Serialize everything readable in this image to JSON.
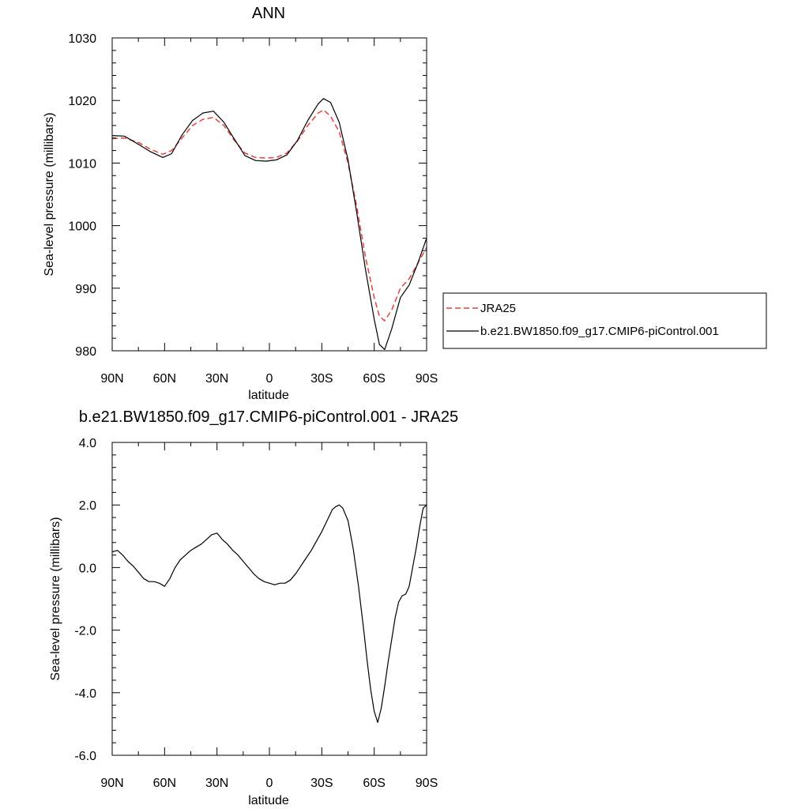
{
  "chart_data": [
    {
      "type": "line",
      "title": "ANN",
      "xlabel": "latitude",
      "ylabel": "Sea-level pressure (millibars)",
      "xlim": [
        90,
        -90
      ],
      "ylim": [
        980,
        1030
      ],
      "x_tick_values": [
        90,
        60,
        30,
        0,
        -30,
        -60,
        -90
      ],
      "x_tick_labels": [
        "90N",
        "60N",
        "30N",
        "0",
        "30S",
        "60S",
        "90S"
      ],
      "y_tick_values": [
        980,
        990,
        1000,
        1010,
        1020,
        1030
      ],
      "y_tick_labels": [
        "980",
        "990",
        "1000",
        "1010",
        "1020",
        "1030"
      ],
      "legend": "right",
      "series": [
        {
          "name": "JRA25",
          "color": "#e8403c",
          "dash": "dashed",
          "x": [
            90,
            83,
            75,
            68,
            61,
            56,
            50,
            44,
            38,
            32,
            26,
            20,
            14,
            8,
            2,
            -4,
            -10,
            -16,
            -22,
            -28,
            -31,
            -35,
            -40,
            -45,
            -50,
            -55,
            -60,
            -63,
            -66,
            -70,
            -75,
            -80,
            -85,
            -90
          ],
          "y": [
            1013.9,
            1014.0,
            1013.3,
            1012.2,
            1011.4,
            1012.0,
            1014.0,
            1016.0,
            1017.0,
            1017.3,
            1016.0,
            1013.6,
            1011.6,
            1010.9,
            1010.8,
            1010.9,
            1011.6,
            1013.5,
            1016.0,
            1018.0,
            1018.5,
            1017.5,
            1015.0,
            1010.0,
            1003.0,
            995.0,
            988.5,
            985.5,
            984.8,
            986.5,
            990.0,
            991.5,
            994.0,
            996.5
          ]
        },
        {
          "name": "b.e21.BW1850.f09_g17.CMIP6-piControl.001",
          "color": "#000000",
          "dash": "solid",
          "x": [
            90,
            83,
            75,
            68,
            61,
            56,
            50,
            44,
            38,
            32,
            26,
            20,
            14,
            8,
            2,
            -4,
            -10,
            -16,
            -22,
            -28,
            -31,
            -35,
            -40,
            -45,
            -50,
            -55,
            -60,
            -63,
            -66,
            -70,
            -75,
            -80,
            -85,
            -90
          ],
          "y": [
            1014.4,
            1014.3,
            1013.0,
            1011.8,
            1010.9,
            1011.5,
            1014.5,
            1016.8,
            1018.0,
            1018.3,
            1016.5,
            1013.8,
            1011.2,
            1010.4,
            1010.3,
            1010.5,
            1011.3,
            1013.6,
            1016.8,
            1019.5,
            1020.3,
            1019.7,
            1016.5,
            1010.5,
            1002.0,
            993.0,
            985.0,
            981.0,
            980.2,
            983.5,
            988.5,
            990.5,
            994.0,
            998.0
          ]
        }
      ]
    },
    {
      "type": "line",
      "title": "b.e21.BW1850.f09_g17.CMIP6-piControl.001 - JRA25",
      "xlabel": "latitude",
      "ylabel": "Sea-level pressure (millibars)",
      "xlim": [
        90,
        -90
      ],
      "ylim": [
        -6.0,
        4.0
      ],
      "x_tick_values": [
        90,
        60,
        30,
        0,
        -30,
        -60,
        -90
      ],
      "x_tick_labels": [
        "90N",
        "60N",
        "30N",
        "0",
        "30S",
        "60S",
        "90S"
      ],
      "y_tick_values": [
        -6.0,
        -4.0,
        -2.0,
        0.0,
        2.0,
        4.0
      ],
      "y_tick_labels": [
        "-6.0",
        "-4.0",
        "-2.0",
        "0.0",
        "2.0",
        "4.0"
      ],
      "series": [
        {
          "color": "#000000",
          "dash": "solid",
          "x": [
            90,
            87,
            84,
            81,
            78,
            75,
            72,
            69,
            66,
            63,
            60,
            57,
            54,
            51,
            48,
            45,
            42,
            39,
            36,
            33,
            30,
            27,
            24,
            21,
            18,
            15,
            12,
            9,
            6,
            3,
            0,
            -3,
            -6,
            -9,
            -12,
            -15,
            -18,
            -21,
            -24,
            -27,
            -30,
            -33,
            -36,
            -38,
            -40,
            -42,
            -45,
            -48,
            -51,
            -54,
            -56,
            -58,
            -60,
            -62,
            -64,
            -66,
            -68,
            -70,
            -72,
            -74,
            -76,
            -78,
            -80,
            -82,
            -84,
            -86,
            -88,
            -90
          ],
          "y": [
            0.5,
            0.55,
            0.4,
            0.2,
            0.05,
            -0.15,
            -0.35,
            -0.45,
            -0.45,
            -0.5,
            -0.6,
            -0.35,
            0.0,
            0.25,
            0.4,
            0.55,
            0.65,
            0.75,
            0.9,
            1.05,
            1.1,
            0.9,
            0.75,
            0.55,
            0.4,
            0.2,
            0.0,
            -0.2,
            -0.35,
            -0.45,
            -0.5,
            -0.55,
            -0.5,
            -0.5,
            -0.4,
            -0.2,
            0.05,
            0.3,
            0.55,
            0.85,
            1.15,
            1.5,
            1.85,
            1.95,
            2.0,
            1.9,
            1.5,
            0.6,
            -0.6,
            -2.0,
            -3.0,
            -3.9,
            -4.6,
            -4.95,
            -4.5,
            -3.8,
            -3.0,
            -2.3,
            -1.6,
            -1.1,
            -0.9,
            -0.85,
            -0.6,
            0.0,
            0.6,
            1.3,
            1.9,
            2.0
          ]
        }
      ]
    }
  ]
}
